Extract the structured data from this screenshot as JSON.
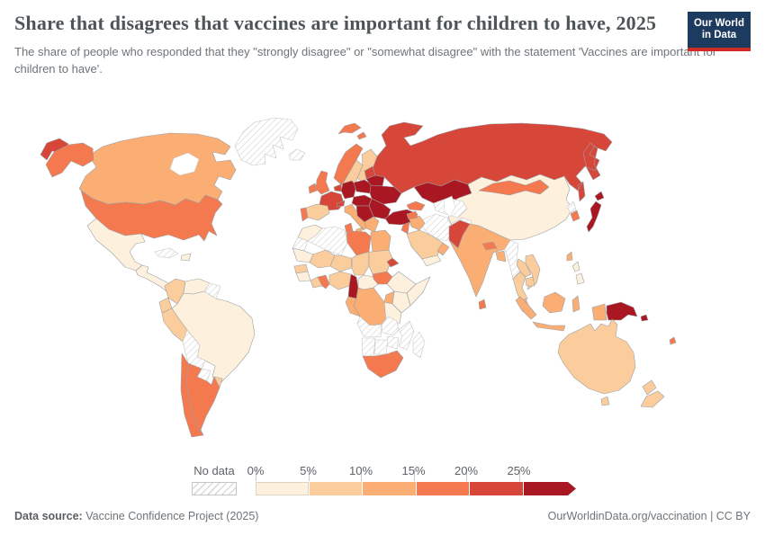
{
  "header": {
    "title": "Share that disagrees that vaccines are important for children to have, 2025",
    "subtitle": "The share of people who responded that they \"strongly disagree\" or \"somewhat disagree\" with the statement 'Vaccines are important for children to have'.",
    "logo": {
      "line1": "Our World",
      "line2": "in Data",
      "bg_color": "#1d3a5f",
      "accent_color": "#d02a25"
    }
  },
  "legend": {
    "no_data_label": "No data",
    "tick_labels": [
      "0%",
      "5%",
      "10%",
      "15%",
      "20%",
      "25%"
    ],
    "hatch_color": "#d8d8d8"
  },
  "footer": {
    "source_label": "Data source:",
    "source_text": " Vaccine Confidence Project (2025)",
    "link_text": "OurWorldinData.org/vaccination | CC BY"
  },
  "chart_data": {
    "type": "choropleth",
    "title": "Share that disagrees that vaccines are important for children to have, 2025",
    "unit": "share of respondents disagreeing",
    "legend_position": "bottom",
    "bins": [
      {
        "range": "0-5%",
        "color": "#fdf0dc"
      },
      {
        "range": "5-10%",
        "color": "#fccd9c"
      },
      {
        "range": "10-15%",
        "color": "#fbae74"
      },
      {
        "range": "15-20%",
        "color": "#f4794e"
      },
      {
        "range": "20-25%",
        "color": "#d6473a"
      },
      {
        "range": ">25%",
        "color": "#a91822"
      }
    ],
    "no_data": {
      "label": "No data",
      "style": "gray diagonal hatch"
    },
    "countries": {
      "Greenland": "No data",
      "Iceland": "No data",
      "Canada": "10-15%",
      "United States": "15-20%",
      "Mexico": "0-5%",
      "Guatemala": "0-5%",
      "Cuba": "No data",
      "Dominican Republic": "0-5%",
      "Colombia": "5-10%",
      "Venezuela": "0-5%",
      "Guyana": "No data",
      "Ecuador": "5-10%",
      "Peru": "5-10%",
      "Brazil": "0-5%",
      "Bolivia": "No data",
      "Paraguay": "No data",
      "Uruguay": "5-10%",
      "Chile": "15-20%",
      "Argentina": "15-20%",
      "Norway": "15-20%",
      "Sweden": "5-10%",
      "Finland": "5-10%",
      "Denmark": "10-15%",
      "United Kingdom": "15-20%",
      "Ireland": "15-20%",
      "France": "20-25%",
      "Spain": "5-10%",
      "Portugal": "15-20%",
      "Netherlands": "20-25%",
      "Germany": ">25%",
      "Switzerland": "20-25%",
      "Italy": "10-15%",
      "Austria": ">25%",
      "Poland": ">25%",
      "Estonia": "20-25%",
      "Belarus": ">25%",
      "Ukraine": ">25%",
      "Romania": ">25%",
      "Serbia": ">25%",
      "Greece": "10-15%",
      "Turkey": ">25%",
      "Russia": "20-25%",
      "Kazakhstan": ">25%",
      "Georgia": "15-20%",
      "Uzbekistan": "No data",
      "Iran": "No data",
      "Afghanistan": "No data",
      "Iraq": "10-15%",
      "Syria": "15-20%",
      "Israel": "15-20%",
      "Saudi Arabia": "5-10%",
      "Yemen": "0-5%",
      "Oman": "10-15%",
      "Morocco": "0-5%",
      "Western Sahara": "No data",
      "Algeria": "No data",
      "Tunisia": "15-20%",
      "Libya": "15-20%",
      "Egypt": "10-15%",
      "Mauritania": "0-5%",
      "Mali": "5-10%",
      "Niger": "5-10%",
      "Chad": "5-10%",
      "Sudan": "5-10%",
      "Eritrea": "20-25%",
      "Senegal": "5-10%",
      "Guinea": "0-5%",
      "Cote d'Ivoire": "5-10%",
      "Ghana": "15-20%",
      "Nigeria": "5-10%",
      "Cameroon": ">25%",
      "Central African Republic": "0-5%",
      "South Sudan": "15-20%",
      "Ethiopia": "0-5%",
      "Somalia": "0-5%",
      "Kenya": "0-5%",
      "Uganda": "10-15%",
      "Democratic Republic of Congo": "10-15%",
      "Gabon": "10-15%",
      "Tanzania": "0-5%",
      "Angola": "No data",
      "Zambia": "No data",
      "Mozambique": "No data",
      "Zimbabwe": "No data",
      "Namibia": "No data",
      "Botswana": "No data",
      "South Africa": "15-20%",
      "Madagascar": "No data",
      "Pakistan": "20-25%",
      "India": "10-15%",
      "Nepal": "15-20%",
      "Bangladesh": "10-15%",
      "Sri Lanka": "15-20%",
      "China": "0-5%",
      "Mongolia": "15-20%",
      "North Korea": "No data",
      "South Korea": "15-20%",
      "Japan": ">25%",
      "Taiwan": "10-15%",
      "Myanmar": "No data",
      "Thailand": "5-10%",
      "Laos": "5-10%",
      "Vietnam": "5-10%",
      "Cambodia": "5-10%",
      "Malaysia": "10-15%",
      "Philippines": "0-5%",
      "Indonesia": "10-15%",
      "Papua New Guinea": ">25%",
      "Solomon Islands": ">25%",
      "Fiji": "15-20%",
      "Australia": "5-10%",
      "New Zealand": "5-10%"
    }
  }
}
